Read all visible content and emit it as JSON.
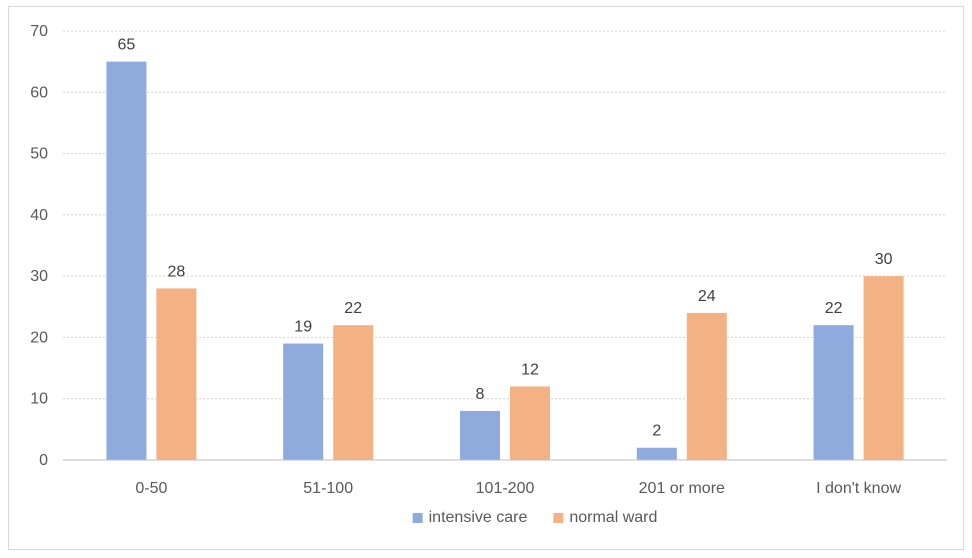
{
  "chart_data": {
    "type": "bar",
    "title": "",
    "xlabel": "",
    "ylabel": "",
    "categories": [
      "0-50",
      "51-100",
      "101-200",
      "201 or more",
      "I don't know"
    ],
    "series": [
      {
        "name": "intensive care",
        "color": "#8faadc",
        "values": [
          65,
          19,
          8,
          2,
          22
        ]
      },
      {
        "name": "normal ward",
        "color": "#f4b183",
        "values": [
          28,
          22,
          12,
          24,
          30
        ]
      }
    ],
    "ylim": [
      0,
      70
    ],
    "yticks": [
      0,
      10,
      20,
      30,
      40,
      50,
      60,
      70
    ],
    "grid": true,
    "data_labels": true,
    "legend_position": "bottom"
  }
}
